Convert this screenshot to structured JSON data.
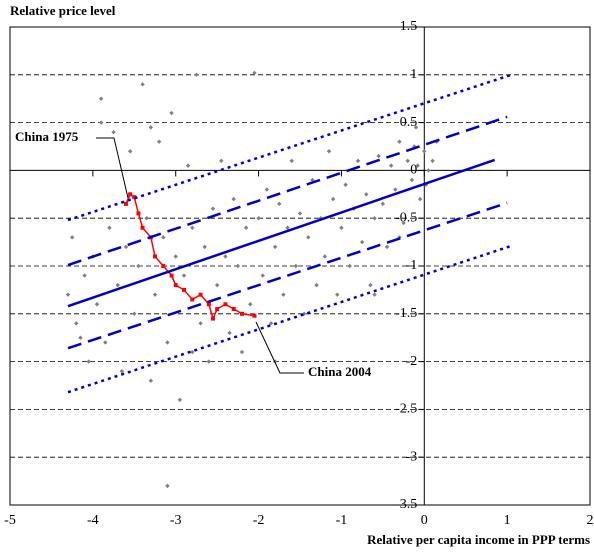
{
  "chart_data": {
    "type": "scatter",
    "title": "Relative price level",
    "x_label": "Relative per capita income in PPP terms",
    "xlim": [
      -5,
      2
    ],
    "ylim": [
      -3.5,
      1.5
    ],
    "xticks": [
      -5,
      -4,
      -3,
      -2,
      -1,
      0,
      1,
      2
    ],
    "yticks": [
      1.5,
      1,
      0.5,
      0,
      -0.5,
      -1,
      -1.5,
      -2,
      -2.5,
      -3,
      -3.5
    ],
    "grid": true,
    "series": [
      {
        "color": "#808080",
        "marker": "diamond",
        "x": [
          -4.3,
          -4.25,
          -4.2,
          -4.1,
          -4.05,
          -4.0,
          -3.95,
          -3.9,
          -3.85,
          -3.8,
          -3.75,
          -3.7,
          -3.65,
          -3.6,
          -3.55,
          -3.5,
          -3.45,
          -3.4,
          -3.35,
          -3.3,
          -3.25,
          -3.2,
          -3.15,
          -3.1,
          -3.05,
          -3.0,
          -2.95,
          -2.9,
          -2.85,
          -2.8,
          -2.75,
          -2.7,
          -2.65,
          -2.6,
          -2.55,
          -2.5,
          -2.45,
          -2.4,
          -2.35,
          -2.3,
          -2.25,
          -2.2,
          -2.15,
          -2.1,
          -2.05,
          -2.0,
          -1.95,
          -1.9,
          -1.85,
          -1.8,
          -1.75,
          -1.7,
          -1.65,
          -1.6,
          -1.55,
          -1.5,
          -1.45,
          -1.4,
          -1.35,
          -1.3,
          -1.25,
          -1.2,
          -1.15,
          -1.1,
          -1.05,
          -1.0,
          -0.95,
          -0.9,
          -0.85,
          -0.8,
          -0.75,
          -0.7,
          -0.65,
          -0.6,
          -0.55,
          -0.5,
          -0.45,
          -0.4,
          -0.35,
          -0.3,
          -0.25,
          -0.2,
          -0.15,
          -0.1,
          -0.05,
          0.0,
          0.05,
          -0.12,
          -0.08,
          0.02,
          0.1,
          0.15,
          -0.3,
          -0.6,
          -1.8,
          -3.1,
          -3.9,
          -3.3,
          -2.8,
          -4.15
        ],
        "values": [
          -1.3,
          -0.7,
          -1.6,
          -1.1,
          -2.0,
          -0.9,
          -1.4,
          0.75,
          -1.8,
          -0.6,
          0.4,
          -1.2,
          -2.1,
          -0.8,
          0.2,
          -1.5,
          -1.0,
          0.9,
          -0.5,
          -2.2,
          -1.3,
          0.3,
          -0.7,
          -1.8,
          0.6,
          -0.9,
          -2.4,
          -1.1,
          0.05,
          -0.6,
          1.0,
          -1.6,
          -0.8,
          -2.0,
          -0.4,
          -1.2,
          0.1,
          -0.9,
          -1.7,
          -0.3,
          -1.0,
          -1.9,
          -0.6,
          -1.4,
          1.02,
          -0.5,
          -1.1,
          -0.2,
          -1.6,
          -0.8,
          -0.35,
          -1.3,
          -0.6,
          0.1,
          -1.0,
          -0.45,
          -1.5,
          -0.7,
          -0.1,
          -1.2,
          -0.5,
          -0.9,
          0.2,
          -0.3,
          -1.3,
          -0.6,
          -0.15,
          -1.0,
          -0.4,
          0.1,
          -0.75,
          -0.25,
          -1.2,
          -0.5,
          0.15,
          -0.35,
          -0.8,
          0.05,
          -0.2,
          0.3,
          -0.55,
          0.1,
          -0.1,
          0.45,
          -0.3,
          0.2,
          0.0,
          0.25,
          0.05,
          -0.15,
          0.1,
          0.3,
          -0.7,
          -1.3,
          -2.0,
          -3.3,
          0.5,
          0.45,
          -1.9,
          -1.75
        ]
      },
      {
        "color": "#ff0000",
        "marker": "square",
        "line": "solid",
        "x": [
          -3.6,
          -3.55,
          -3.5,
          -3.45,
          -3.4,
          -3.3,
          -3.25,
          -3.15,
          -3.05,
          -3.0,
          -2.9,
          -2.8,
          -2.7,
          -2.6,
          -2.55,
          -2.5,
          -2.4,
          -2.3,
          -2.2,
          -2.05
        ],
        "values": [
          -0.35,
          -0.25,
          -0.28,
          -0.45,
          -0.6,
          -0.7,
          -0.9,
          -1.0,
          -1.1,
          -1.2,
          -1.25,
          -1.35,
          -1.3,
          -1.4,
          -1.55,
          -1.45,
          -1.4,
          -1.45,
          -1.5,
          -1.52
        ]
      },
      {
        "color": "#0000cc",
        "line": "solid",
        "x": [
          -4.3,
          0.85
        ],
        "values": [
          -1.42,
          0.11
        ]
      },
      {
        "color": "#0000cc",
        "line": "dashed",
        "x": [
          -4.3,
          1.0
        ],
        "values": [
          -0.99,
          0.56
        ]
      },
      {
        "color": "#0000cc",
        "line": "dashed",
        "x": [
          -4.3,
          1.0
        ],
        "values": [
          -1.86,
          -0.34
        ]
      },
      {
        "color": "#0000cc",
        "line": "dotted",
        "x": [
          -4.3,
          1.05
        ],
        "values": [
          -0.52,
          1.0
        ]
      },
      {
        "color": "#0000cc",
        "line": "dotted",
        "x": [
          -4.3,
          1.05
        ],
        "values": [
          -2.32,
          -0.79
        ]
      }
    ],
    "annotations": [
      "China 1975",
      "China 2004"
    ]
  }
}
